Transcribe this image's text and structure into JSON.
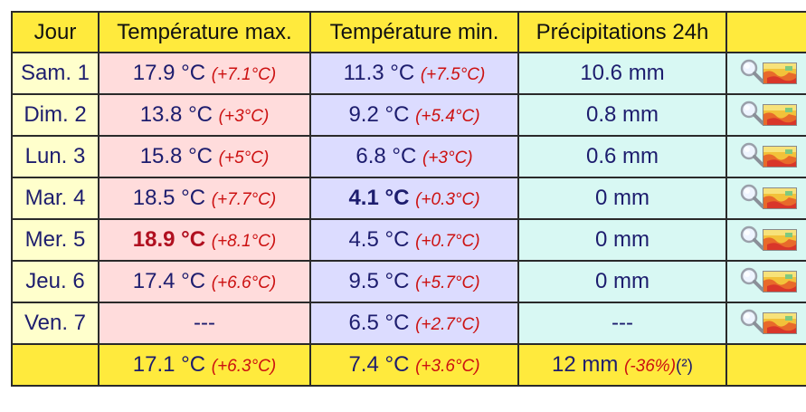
{
  "header": {
    "day": "Jour",
    "max": "Température max.",
    "min": "Température min.",
    "precip": "Précipitations 24h",
    "extra": ""
  },
  "rows": [
    {
      "day": "Sam. 1",
      "max": "17.9 °C",
      "max_anom": "(+7.1°C)",
      "min": "11.3 °C",
      "min_anom": "(+7.5°C)",
      "precip": "10.6 mm"
    },
    {
      "day": "Dim. 2",
      "max": "13.8 °C",
      "max_anom": "(+3°C)",
      "min": "9.2 °C",
      "min_anom": "(+5.4°C)",
      "precip": "0.8 mm"
    },
    {
      "day": "Lun. 3",
      "max": "15.8 °C",
      "max_anom": "(+5°C)",
      "min": "6.8 °C",
      "min_anom": "(+3°C)",
      "precip": "0.6 mm"
    },
    {
      "day": "Mar. 4",
      "max": "18.5 °C",
      "max_anom": "(+7.7°C)",
      "min": "4.1 °C",
      "min_anom": "(+0.3°C)",
      "precip": "0 mm"
    },
    {
      "day": "Mer. 5",
      "max": "18.9 °C",
      "max_anom": "(+8.1°C)",
      "min": "4.5 °C",
      "min_anom": "(+0.7°C)",
      "precip": "0 mm"
    },
    {
      "day": "Jeu. 6",
      "max": "17.4 °C",
      "max_anom": "(+6.6°C)",
      "min": "9.5 °C",
      "min_anom": "(+5.7°C)",
      "precip": "0 mm"
    },
    {
      "day": "Ven. 7",
      "max": "---",
      "max_anom": "",
      "min": "6.5 °C",
      "min_anom": "(+2.7°C)",
      "precip": "---"
    }
  ],
  "footer": {
    "day": "",
    "max": "17.1 °C",
    "max_anom": "(+6.3°C)",
    "min": "7.4 °C",
    "min_anom": "(+3.6°C)",
    "precip": "12 mm",
    "precip_anom": "(-36%)",
    "precip_note": "(²)"
  },
  "icons": {
    "detail": "magnifier-icon",
    "map": "map-thumbnail-icon"
  },
  "colors": {
    "header_bg": "#ffea3d",
    "day_bg": "#ffffcc",
    "max_bg": "#ffdcdc",
    "min_bg": "#dcdcff",
    "precip_bg": "#d8f8f3",
    "anomaly": "#cc1111",
    "record_max": "#b01020"
  }
}
